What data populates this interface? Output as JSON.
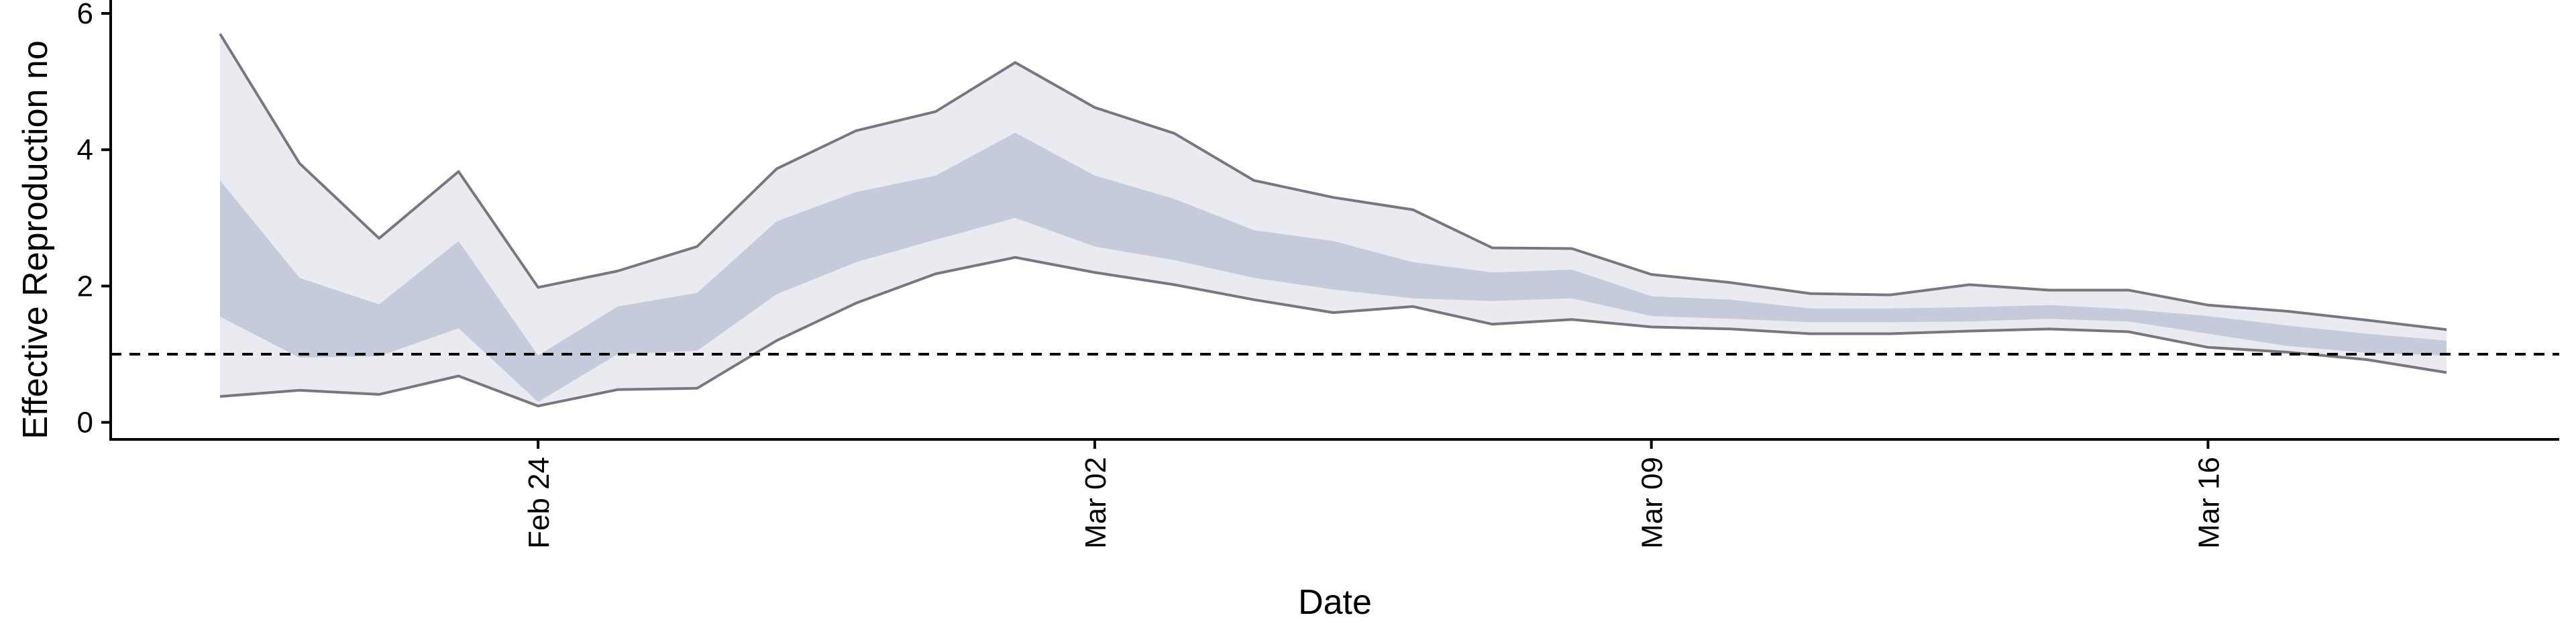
{
  "chart_data": {
    "type": "area",
    "title": "",
    "xlabel": "Date",
    "ylabel": "Effective Reproduction no",
    "x": [
      "2020-02-20",
      "2020-02-21",
      "2020-02-22",
      "2020-02-23",
      "2020-02-24",
      "2020-02-25",
      "2020-02-26",
      "2020-02-27",
      "2020-02-28",
      "2020-02-29",
      "2020-03-01",
      "2020-03-02",
      "2020-03-03",
      "2020-03-04",
      "2020-03-05",
      "2020-03-06",
      "2020-03-07",
      "2020-03-08",
      "2020-03-09",
      "2020-03-10",
      "2020-03-11",
      "2020-03-12",
      "2020-03-13",
      "2020-03-14",
      "2020-03-15",
      "2020-03-16",
      "2020-03-17",
      "2020-03-18",
      "2020-03-19"
    ],
    "xticks": [
      {
        "date": "2020-02-24",
        "label": "Feb 24"
      },
      {
        "date": "2020-03-02",
        "label": "Mar 02"
      },
      {
        "date": "2020-03-09",
        "label": "Mar 09"
      },
      {
        "date": "2020-03-16",
        "label": "Mar 16"
      }
    ],
    "yticks": [
      0,
      2,
      4,
      6
    ],
    "ylim": [
      -0.25,
      6
    ],
    "xlim": [
      "2020-02-18T15:00",
      "2020-03-20T10:00"
    ],
    "reference_line": {
      "y": 1,
      "style": "dashed",
      "color": "#000000"
    },
    "series": [
      {
        "band": "outer",
        "color": "#eaebf1",
        "lower": [
          0.38,
          0.47,
          0.41,
          0.68,
          0.24,
          0.48,
          0.5,
          1.2,
          1.75,
          2.18,
          2.42,
          2.2,
          2.02,
          1.8,
          1.61,
          1.7,
          1.44,
          1.51,
          1.4,
          1.37,
          1.3,
          1.3,
          1.34,
          1.37,
          1.33,
          1.1,
          1.03,
          0.92,
          0.73
        ],
        "upper": [
          5.7,
          3.8,
          2.7,
          3.68,
          1.98,
          2.22,
          2.58,
          3.72,
          4.28,
          4.56,
          5.28,
          4.62,
          4.24,
          3.55,
          3.3,
          3.12,
          2.56,
          2.55,
          2.17,
          2.05,
          1.89,
          1.87,
          2.02,
          1.94,
          1.94,
          1.72,
          1.63,
          1.5,
          1.36
        ]
      },
      {
        "band": "inner",
        "color": "#c5cbdb",
        "lower": [
          1.55,
          0.95,
          0.97,
          1.38,
          0.3,
          1.0,
          1.05,
          1.88,
          2.35,
          2.68,
          3.0,
          2.58,
          2.38,
          2.12,
          1.95,
          1.82,
          1.78,
          1.82,
          1.56,
          1.52,
          1.47,
          1.47,
          1.48,
          1.52,
          1.48,
          1.3,
          1.12,
          1.02,
          0.98
        ],
        "upper": [
          3.55,
          2.12,
          1.73,
          2.66,
          0.98,
          1.7,
          1.9,
          2.95,
          3.38,
          3.62,
          4.25,
          3.62,
          3.28,
          2.82,
          2.66,
          2.35,
          2.2,
          2.24,
          1.85,
          1.8,
          1.67,
          1.67,
          1.69,
          1.72,
          1.66,
          1.56,
          1.42,
          1.3,
          1.2
        ]
      }
    ],
    "edge_color": "#77777f",
    "grid": false,
    "legend": "none"
  }
}
